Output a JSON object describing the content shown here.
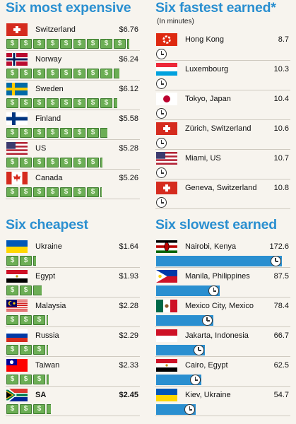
{
  "chart_data": [
    {
      "type": "bar",
      "title": "Six most expensive",
      "categories": [
        "Switzerland",
        "Norway",
        "Sweden",
        "Finland",
        "US",
        "Canada"
      ],
      "labels": [
        "$6.76",
        "$6.24",
        "$6.12",
        "$5.58",
        "$5.28",
        "$5.26"
      ],
      "values": [
        6.76,
        6.24,
        6.12,
        5.58,
        5.28,
        5.26
      ]
    },
    {
      "type": "bar",
      "title": "Six fastest earned*",
      "subtitle": "(In minutes)",
      "categories": [
        "Hong Kong",
        "Luxembourg",
        "Tokyo, Japan",
        "Zürich, Switzerland",
        "Miami, US",
        "Geneva, Switzerland"
      ],
      "labels": [
        "8.7",
        "10.3",
        "10.4",
        "10.6",
        "10.7",
        "10.8"
      ],
      "values": [
        8.7,
        10.3,
        10.4,
        10.6,
        10.7,
        10.8
      ]
    },
    {
      "type": "bar",
      "title": "Six cheapest",
      "categories": [
        "Ukraine",
        "Egypt",
        "Malaysia",
        "Russia",
        "Taiwan",
        "SA"
      ],
      "labels": [
        "$1.64",
        "$1.93",
        "$2.28",
        "$2.29",
        "$2.33",
        "$2.45"
      ],
      "values": [
        1.64,
        1.93,
        2.28,
        2.29,
        2.33,
        2.45
      ]
    },
    {
      "type": "bar",
      "title": "Six slowest earned",
      "categories": [
        "Nairobi, Kenya",
        "Manila, Philippines",
        "Mexico City, Mexico",
        "Jakarta, Indonesia",
        "Cairo, Egypt",
        "Kiev, Ukraine"
      ],
      "labels": [
        "172.6",
        "87.5",
        "78.4",
        "66.7",
        "62.5",
        "54.7"
      ],
      "values": [
        172.6,
        87.5,
        78.4,
        66.7,
        62.5,
        54.7
      ]
    }
  ],
  "flags": [
    [
      "switzerland",
      "norway",
      "sweden",
      "finland",
      "usa",
      "canada"
    ],
    [
      "hongkong",
      "luxembourg",
      "japan",
      "switzerland",
      "usa",
      "switzerland"
    ],
    [
      "ukraine",
      "egypt",
      "malaysia",
      "russia",
      "taiwan",
      "southafrica"
    ],
    [
      "kenya",
      "philippines",
      "mexico",
      "indonesia",
      "egypt",
      "ukraine"
    ]
  ],
  "icons": {
    "money": "dollar-bill-icon",
    "time": "clock-icon"
  },
  "colors": {
    "title": "#2a8fd0",
    "time_bar": "#2a8fd0",
    "money": "#6cae55"
  }
}
